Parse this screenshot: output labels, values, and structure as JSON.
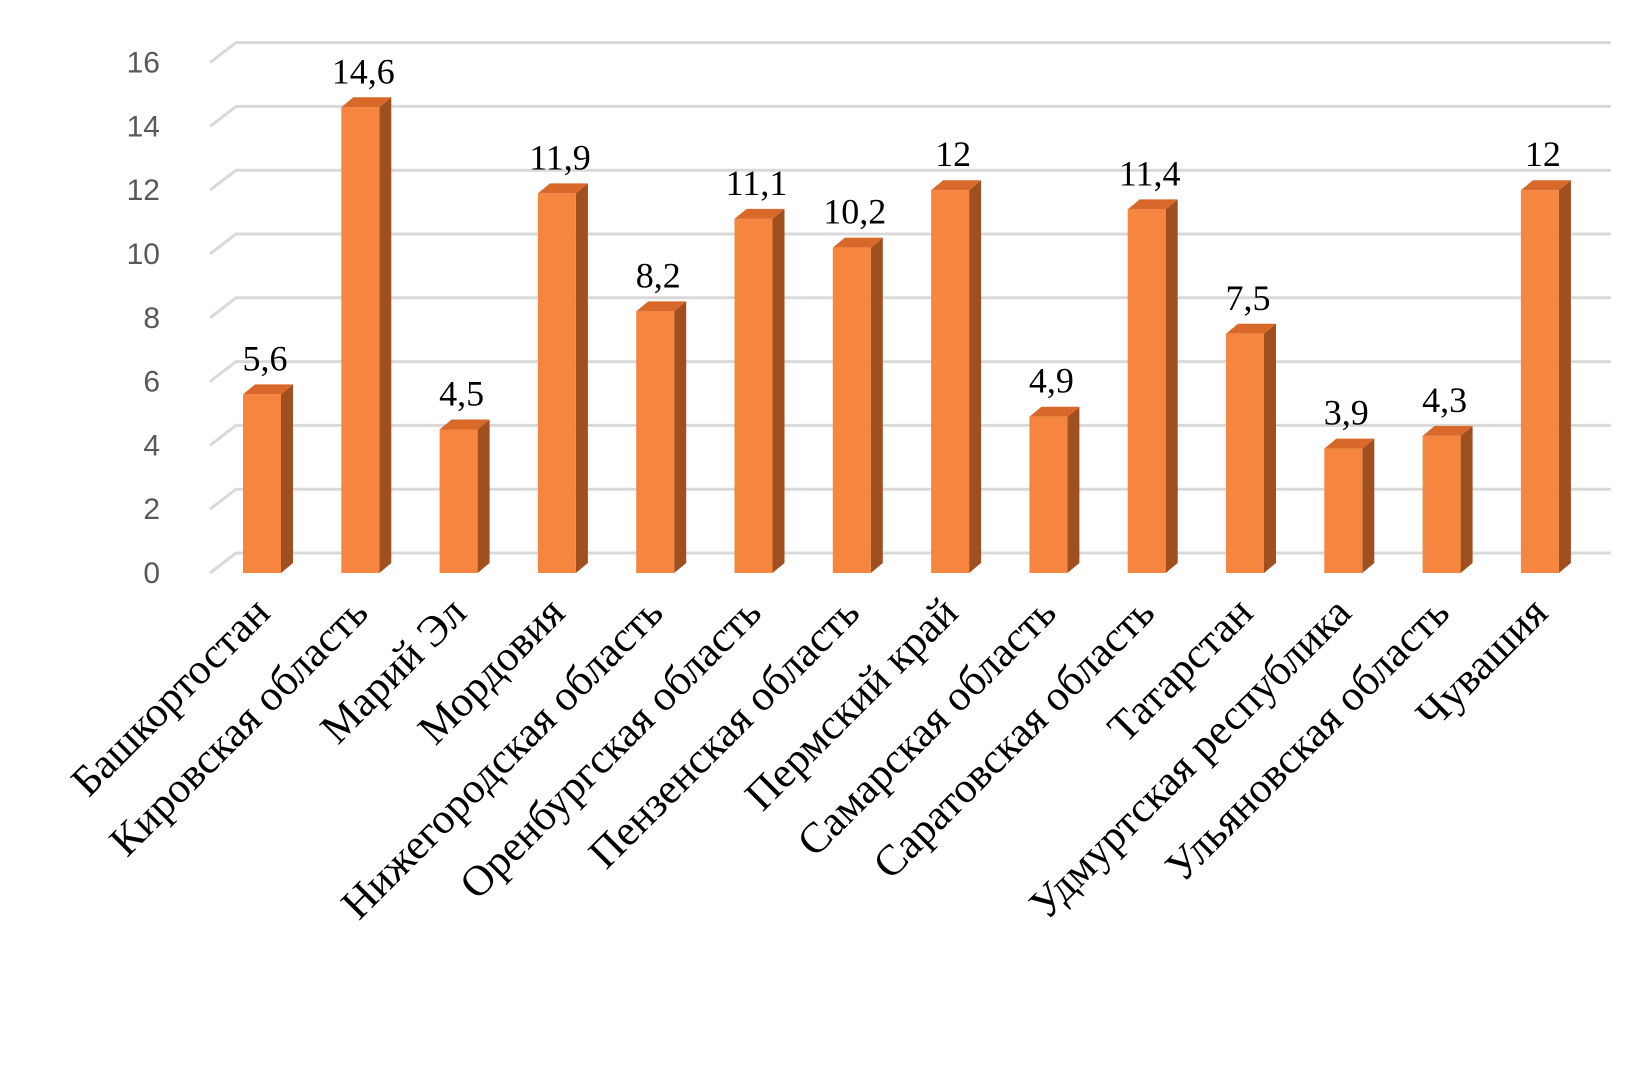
{
  "chart_data": {
    "type": "bar",
    "style": "3d-column",
    "title": "",
    "xlabel": "",
    "ylabel": "",
    "ylim": [
      0,
      16
    ],
    "yticks": [
      0,
      2,
      4,
      6,
      8,
      10,
      12,
      14,
      16
    ],
    "grid": true,
    "legend": "none",
    "categories": [
      "Башкортостан",
      "Кировская область",
      "Марий Эл",
      "Мордовия",
      "Нижегородская область",
      "Оренбургская область",
      "Пензенская область",
      "Пермский край",
      "Самарская область",
      "Саратовская область",
      "Татарстан",
      "Удмуртская республика",
      "Ульяновская область",
      "Чувашия"
    ],
    "values": [
      5.6,
      14.6,
      4.5,
      11.9,
      8.2,
      11.1,
      10.2,
      12,
      4.9,
      11.4,
      7.5,
      3.9,
      4.3,
      12
    ],
    "value_labels": [
      "5,6",
      "14,6",
      "4,5",
      "11,9",
      "8,2",
      "11,1",
      "10,2",
      "12",
      "4,9",
      "11,4",
      "7,5",
      "3,9",
      "4,3",
      "12"
    ],
    "colors": {
      "bar_front": "#f5853f",
      "bar_top": "#d9692a",
      "bar_side": "#a0501e",
      "grid": "#d9d9d9",
      "axis_text": "#595959"
    }
  }
}
